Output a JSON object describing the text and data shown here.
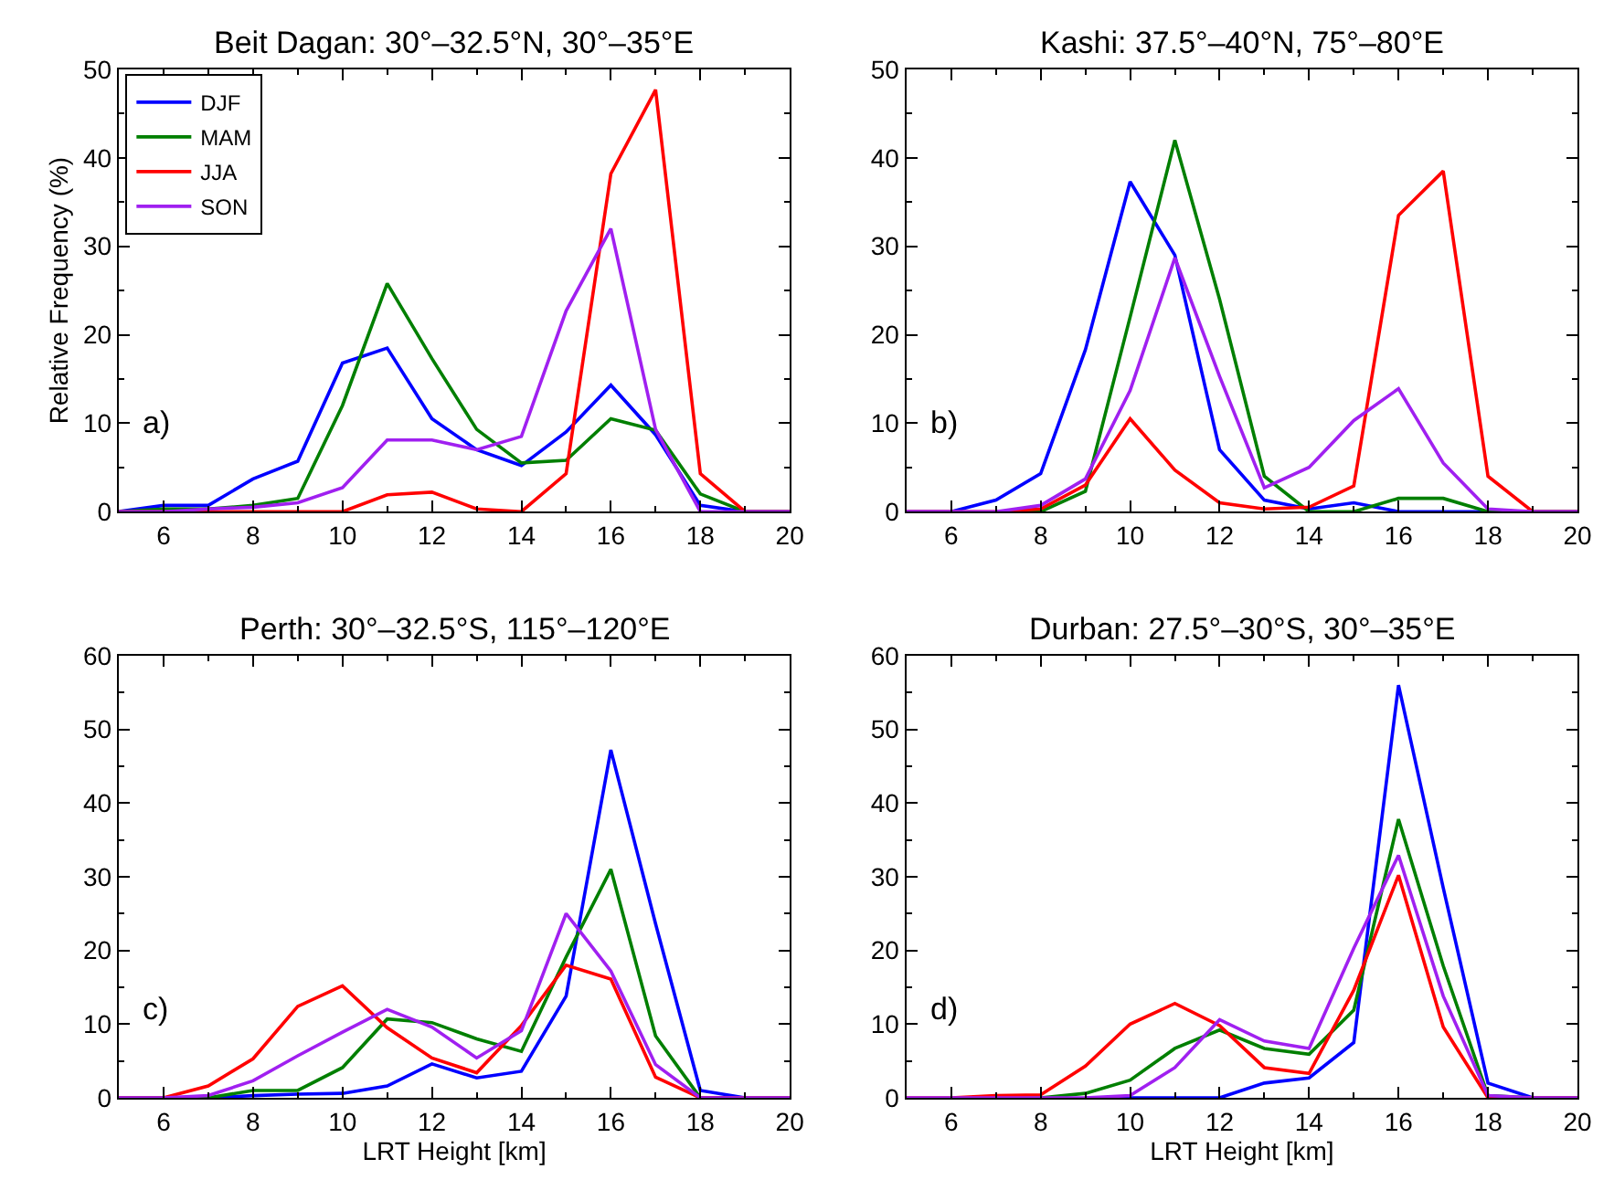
{
  "chart_data": [
    {
      "type": "line",
      "title": "Beit Dagan: 30°–32.5°N, 30°–35°E",
      "ylabel": "Relative Frequency (%)",
      "annotations": [
        "a)"
      ],
      "x": [
        5,
        6,
        7,
        8,
        9,
        10,
        11,
        12,
        13,
        14,
        15,
        16,
        17,
        18,
        19,
        20
      ],
      "xlim": [
        5,
        20
      ],
      "xticks": [
        6,
        8,
        10,
        12,
        14,
        16,
        18,
        20
      ],
      "ylim": [
        0,
        50
      ],
      "yticks": [
        0,
        10,
        20,
        30,
        40,
        50
      ],
      "legend": "top left",
      "marker": "none",
      "line_style": "solid",
      "series": [
        {
          "name": "DJF",
          "color": "#0000ff",
          "values": [
            0,
            0.7,
            0.7,
            3.7,
            5.7,
            16.8,
            18.5,
            10.5,
            7,
            5.2,
            9,
            14.3,
            8.7,
            0.7,
            0,
            0
          ]
        },
        {
          "name": "MAM",
          "color": "#007f00",
          "values": [
            0,
            0.3,
            0.3,
            0.7,
            1.5,
            12,
            25.8,
            17.3,
            9.3,
            5.5,
            5.8,
            10.5,
            9.2,
            2,
            0,
            0
          ]
        },
        {
          "name": "JJA",
          "color": "#ff0000",
          "values": [
            0,
            0,
            0,
            0,
            0,
            0,
            1.9,
            2.2,
            0.3,
            0,
            4.3,
            38.2,
            47.7,
            4.3,
            0,
            0
          ]
        },
        {
          "name": "SON",
          "color": "#a020f0",
          "values": [
            0,
            0,
            0.3,
            0.5,
            1,
            2.7,
            8.1,
            8.1,
            7,
            8.5,
            22.7,
            32,
            9.3,
            0,
            0,
            0
          ]
        }
      ]
    },
    {
      "type": "line",
      "title": "Kashi: 37.5°–40°N, 75°–80°E",
      "annotations": [
        "b)"
      ],
      "x": [
        5,
        6,
        7,
        8,
        9,
        10,
        11,
        12,
        13,
        14,
        15,
        16,
        17,
        18,
        19,
        20
      ],
      "xlim": [
        5,
        20
      ],
      "xticks": [
        6,
        8,
        10,
        12,
        14,
        16,
        18,
        20
      ],
      "ylim": [
        0,
        50
      ],
      "yticks": [
        0,
        10,
        20,
        30,
        40,
        50
      ],
      "marker": "none",
      "line_style": "solid",
      "series": [
        {
          "color": "#0000ff",
          "values": [
            0,
            0,
            1.3,
            4.3,
            18.3,
            37.3,
            29,
            7,
            1.3,
            0.3,
            1,
            0,
            0,
            0,
            0,
            0
          ]
        },
        {
          "color": "#007f00",
          "values": [
            null,
            null,
            0,
            0,
            2.3,
            22,
            42,
            24,
            4,
            0,
            0,
            1.5,
            1.5,
            0,
            0,
            0
          ]
        },
        {
          "color": "#ff0000",
          "values": [
            0,
            0,
            0,
            0.3,
            3,
            10.5,
            4.7,
            1,
            0.3,
            0.5,
            2.9,
            33.5,
            38.5,
            4,
            0,
            0
          ]
        },
        {
          "color": "#a020f0",
          "values": [
            0,
            0,
            0,
            0.7,
            3.7,
            13.7,
            28.7,
            15.3,
            2.7,
            5,
            10.3,
            13.9,
            5.5,
            0.3,
            0,
            0
          ]
        }
      ]
    },
    {
      "type": "line",
      "title": "Perth: 30°–32.5°S, 115°–120°E",
      "xlabel": "LRT Height [km]",
      "annotations": [
        "c)"
      ],
      "x": [
        5,
        6,
        7,
        8,
        9,
        10,
        11,
        12,
        13,
        14,
        15,
        16,
        17,
        18,
        19,
        20
      ],
      "xlim": [
        5,
        20
      ],
      "xticks": [
        6,
        8,
        10,
        12,
        14,
        16,
        18,
        20
      ],
      "ylim": [
        0,
        60
      ],
      "yticks": [
        0,
        10,
        20,
        30,
        40,
        50,
        60
      ],
      "marker": "none",
      "line_style": "solid",
      "series": [
        {
          "color": "#0000ff",
          "values": [
            0,
            0,
            0,
            0.3,
            0.5,
            0.6,
            1.6,
            4.6,
            2.7,
            3.6,
            13.8,
            47.2,
            23.6,
            1,
            0,
            0
          ]
        },
        {
          "color": "#007f00",
          "values": [
            0,
            0,
            0,
            1,
            1,
            4.1,
            10.7,
            10.2,
            8,
            6.3,
            19.1,
            31,
            8.4,
            0,
            0,
            0
          ]
        },
        {
          "color": "#ff0000",
          "values": [
            0,
            0,
            1.6,
            5.3,
            12.4,
            15.2,
            9.5,
            5.4,
            3.4,
            9.8,
            18,
            16.1,
            2.8,
            0,
            0,
            0
          ]
        },
        {
          "color": "#a020f0",
          "values": [
            0,
            0,
            0.3,
            2.3,
            5.7,
            8.9,
            12,
            9.6,
            5.4,
            9.1,
            25,
            17.2,
            4.5,
            0,
            0,
            0
          ]
        }
      ]
    },
    {
      "type": "line",
      "title": "Durban: 27.5°–30°S, 30°–35°E",
      "xlabel": "LRT Height [km]",
      "annotations": [
        "d)"
      ],
      "x": [
        5,
        6,
        7,
        8,
        9,
        10,
        11,
        12,
        13,
        14,
        15,
        16,
        17,
        18,
        19,
        20
      ],
      "xlim": [
        5,
        20
      ],
      "xticks": [
        6,
        8,
        10,
        12,
        14,
        16,
        18,
        20
      ],
      "ylim": [
        0,
        60
      ],
      "yticks": [
        0,
        10,
        20,
        30,
        40,
        50,
        60
      ],
      "marker": "none",
      "line_style": "solid",
      "series": [
        {
          "color": "#0000ff",
          "values": [
            null,
            null,
            null,
            null,
            0,
            0,
            0,
            0,
            2,
            2.7,
            7.5,
            56,
            28.5,
            2,
            0,
            0
          ]
        },
        {
          "color": "#007f00",
          "values": [
            null,
            null,
            0,
            0,
            0.6,
            2.4,
            6.7,
            9.2,
            6.7,
            5.9,
            11.9,
            37.8,
            17.9,
            0.3,
            0,
            0
          ]
        },
        {
          "color": "#ff0000",
          "values": [
            0,
            0,
            0.3,
            0.4,
            4.3,
            10,
            12.8,
            9.8,
            4.1,
            3.3,
            14.6,
            30.2,
            9.6,
            0,
            0,
            0
          ]
        },
        {
          "color": "#a020f0",
          "values": [
            0,
            0,
            0,
            0,
            0,
            0.3,
            4.1,
            10.6,
            7.7,
            6.7,
            20.3,
            32.9,
            13.8,
            0.3,
            0,
            0
          ]
        }
      ]
    }
  ]
}
